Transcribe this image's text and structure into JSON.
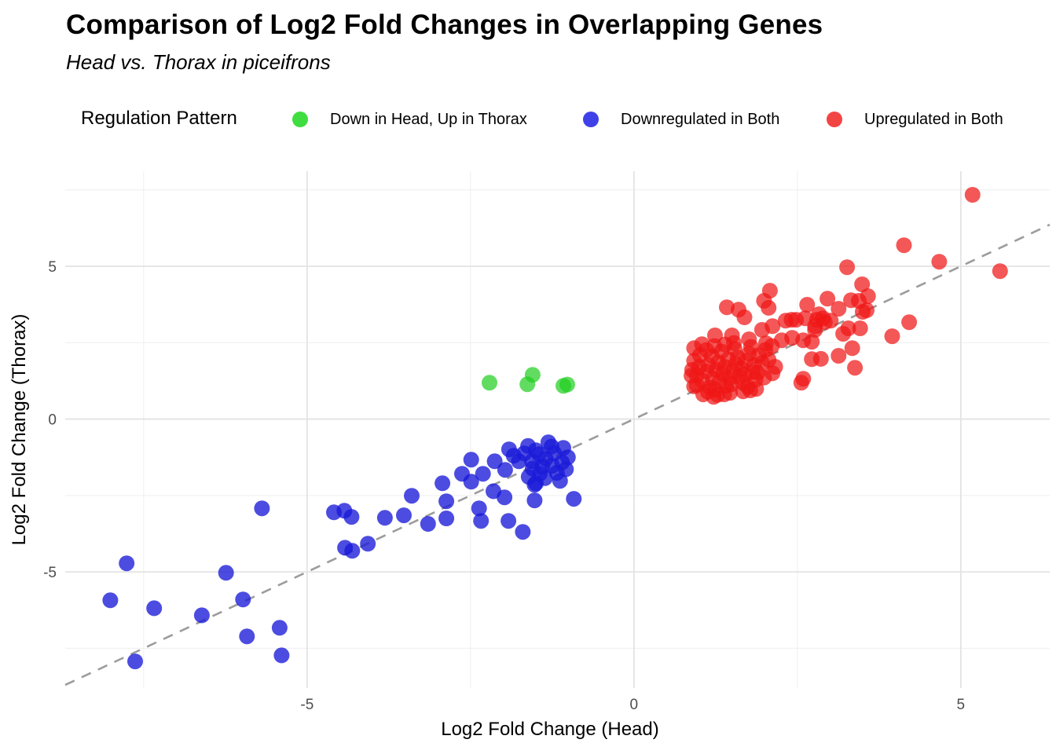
{
  "header": {
    "title": "Comparison of Log2 Fold Changes in Overlapping Genes",
    "subtitle": "Head vs. Thorax in piceifrons"
  },
  "legend": {
    "title": "Regulation Pattern",
    "items": [
      {
        "label": "Down in Head, Up in Thorax",
        "color": "#3fdd3f"
      },
      {
        "label": "Downregulated in Both",
        "color": "#4040e8"
      },
      {
        "label": "Upregulated in Both",
        "color": "#f34444"
      }
    ]
  },
  "chart_data": {
    "type": "scatter",
    "title": "Comparison of Log2 Fold Changes in Overlapping Genes",
    "subtitle": "Head vs. Thorax in piceifrons",
    "xlabel": "Log2 Fold Change (Head)",
    "ylabel": "Log2 Fold Change (Thorax)",
    "xlim": [
      -8.7,
      6.36
    ],
    "ylim": [
      -8.8,
      8.11
    ],
    "x_ticks": [
      -5,
      0,
      5
    ],
    "x_tick_labels": [
      "-5",
      "0",
      "5"
    ],
    "y_ticks": [
      5,
      0,
      -5
    ],
    "y_tick_labels": [
      "5",
      "0",
      "-5"
    ],
    "x_minor_ticks": [
      -7.5,
      -2.5,
      2.5
    ],
    "y_minor_ticks": [
      7.5,
      2.5,
      -2.5,
      -7.5
    ],
    "grid": true,
    "legend_position": "top",
    "reference_line": {
      "type": "identity y=x",
      "style": "dashed",
      "color": "#9c9c9c"
    },
    "series": [
      {
        "name": "Down in Head, Up in Thorax",
        "color": "#1ecd1e",
        "opacity": 0.7,
        "points": [
          [
            -2.21,
            1.19
          ],
          [
            -1.55,
            1.45
          ],
          [
            -1.63,
            1.14
          ],
          [
            -1.08,
            1.09
          ],
          [
            -1.02,
            1.13
          ]
        ]
      },
      {
        "name": "Downregulated in Both",
        "color": "#1a1ad9",
        "opacity": 0.78,
        "points": [
          [
            -8.01,
            -5.93
          ],
          [
            -7.76,
            -4.72
          ],
          [
            -7.63,
            -7.93
          ],
          [
            -7.34,
            -6.19
          ],
          [
            -6.61,
            -6.42
          ],
          [
            -6.24,
            -5.03
          ],
          [
            -5.98,
            -5.9
          ],
          [
            -5.92,
            -7.11
          ],
          [
            -5.69,
            -2.92
          ],
          [
            -5.42,
            -6.83
          ],
          [
            -5.39,
            -7.73
          ],
          [
            -4.59,
            -3.05
          ],
          [
            -4.43,
            -3.0
          ],
          [
            -4.32,
            -3.2
          ],
          [
            -3.81,
            -3.23
          ],
          [
            -3.52,
            -3.15
          ],
          [
            -3.4,
            -2.51
          ],
          [
            -4.42,
            -4.21
          ],
          [
            -4.31,
            -4.31
          ],
          [
            -4.07,
            -4.08
          ],
          [
            -3.15,
            -3.43
          ],
          [
            -2.93,
            -2.1
          ],
          [
            -2.87,
            -2.69
          ],
          [
            -2.87,
            -3.25
          ],
          [
            -2.63,
            -1.79
          ],
          [
            -2.49,
            -1.33
          ],
          [
            -2.49,
            -2.05
          ],
          [
            -2.37,
            -2.92
          ],
          [
            -2.34,
            -3.33
          ],
          [
            -2.31,
            -1.79
          ],
          [
            -2.13,
            -1.38
          ],
          [
            -2.15,
            -2.36
          ],
          [
            -1.97,
            -1.66
          ],
          [
            -1.98,
            -2.56
          ],
          [
            -1.92,
            -3.33
          ],
          [
            -1.7,
            -3.69
          ],
          [
            -1.52,
            -2.66
          ],
          [
            -0.92,
            -2.61
          ],
          [
            -1.52,
            -2.15
          ],
          [
            -1.91,
            -0.99
          ],
          [
            -1.5,
            -1.02
          ],
          [
            -1.31,
            -0.76
          ],
          [
            -1.08,
            -0.94
          ],
          [
            -1.01,
            -1.25
          ],
          [
            -1.04,
            -1.64
          ],
          [
            -1.56,
            -1.38
          ],
          [
            -1.44,
            -1.79
          ],
          [
            -1.25,
            -1.53
          ],
          [
            -1.61,
            -1.89
          ],
          [
            -1.76,
            -1.38
          ],
          [
            -1.13,
            -2.02
          ],
          [
            -1.5,
            -2.1
          ],
          [
            -1.45,
            -1.15
          ],
          [
            -1.35,
            -1.3
          ],
          [
            -1.22,
            -1.12
          ],
          [
            -1.68,
            -1.12
          ],
          [
            -1.4,
            -1.55
          ],
          [
            -1.18,
            -1.76
          ],
          [
            -1.36,
            -1.93
          ],
          [
            -1.55,
            -1.62
          ],
          [
            -1.26,
            -0.9
          ],
          [
            -1.84,
            -1.2
          ],
          [
            -1.62,
            -0.88
          ],
          [
            -1.1,
            -1.42
          ]
        ]
      },
      {
        "name": "Upregulated in Both",
        "color": "#f01616",
        "opacity": 0.72,
        "points": [
          [
            5.18,
            7.34
          ],
          [
            4.13,
            5.69
          ],
          [
            4.67,
            5.15
          ],
          [
            5.6,
            4.84
          ],
          [
            3.26,
            4.97
          ],
          [
            3.49,
            4.41
          ],
          [
            2.96,
            3.94
          ],
          [
            3.32,
            3.89
          ],
          [
            3.58,
            4.02
          ],
          [
            3.56,
            3.56
          ],
          [
            2.65,
            3.74
          ],
          [
            2.08,
            4.2
          ],
          [
            1.99,
            3.87
          ],
          [
            1.42,
            3.66
          ],
          [
            1.6,
            3.58
          ],
          [
            1.69,
            3.33
          ],
          [
            2.06,
            3.64
          ],
          [
            2.8,
            3.25
          ],
          [
            2.92,
            3.17
          ],
          [
            2.62,
            3.3
          ],
          [
            2.48,
            3.25
          ],
          [
            2.77,
            2.92
          ],
          [
            2.72,
            2.53
          ],
          [
            2.59,
            2.58
          ],
          [
            2.42,
            2.66
          ],
          [
            3.28,
            2.97
          ],
          [
            3.46,
            2.97
          ],
          [
            3.5,
            3.51
          ],
          [
            4.21,
            3.17
          ],
          [
            3.95,
            2.71
          ],
          [
            3.34,
            2.32
          ],
          [
            3.13,
            2.07
          ],
          [
            3.38,
            1.68
          ],
          [
            2.72,
            1.96
          ],
          [
            2.59,
            1.32
          ],
          [
            2.56,
            1.19
          ],
          [
            2.12,
            1.5
          ],
          [
            2.86,
            1.97
          ],
          [
            1.24,
            2.74
          ],
          [
            1.5,
            2.74
          ],
          [
            1.96,
            2.92
          ],
          [
            2.02,
            2.48
          ],
          [
            2.12,
            3.04
          ],
          [
            2.26,
            2.58
          ],
          [
            1.76,
            2.61
          ],
          [
            1.04,
            2.45
          ],
          [
            0.92,
            2.32
          ],
          [
            2.32,
            3.22
          ],
          [
            2.41,
            3.25
          ],
          [
            2.83,
            3.43
          ],
          [
            2.89,
            3.3
          ],
          [
            3.01,
            3.22
          ],
          [
            2.77,
            3.04
          ],
          [
            3.13,
            3.61
          ],
          [
            3.44,
            3.87
          ],
          [
            3.2,
            2.79
          ],
          [
            0.88,
            1.42
          ],
          [
            0.92,
            1.07
          ],
          [
            1.06,
            0.81
          ],
          [
            1.22,
            0.73
          ],
          [
            1.38,
            0.81
          ],
          [
            1.78,
            0.94
          ],
          [
            1.04,
            1.27
          ],
          [
            1.11,
            1.56
          ],
          [
            1.16,
            1.04
          ],
          [
            1.14,
            1.77
          ],
          [
            1.21,
            1.33
          ],
          [
            1.19,
            2.06
          ],
          [
            1.26,
            1.61
          ],
          [
            1.24,
            0.96
          ],
          [
            1.31,
            1.24
          ],
          [
            1.29,
            1.86
          ],
          [
            1.36,
            1.49
          ],
          [
            1.34,
            2.21
          ],
          [
            1.41,
            1.09
          ],
          [
            1.39,
            1.71
          ],
          [
            1.46,
            1.34
          ],
          [
            1.44,
            1.96
          ],
          [
            1.51,
            1.56
          ],
          [
            1.49,
            1.14
          ],
          [
            1.56,
            1.81
          ],
          [
            1.54,
            2.29
          ],
          [
            1.61,
            1.39
          ],
          [
            1.59,
            2.01
          ],
          [
            1.66,
            1.19
          ],
          [
            1.64,
            1.66
          ],
          [
            1.71,
            1.91
          ],
          [
            1.69,
            1.44
          ],
          [
            1.76,
            2.14
          ],
          [
            1.74,
            1.06
          ],
          [
            1.81,
            1.54
          ],
          [
            1.79,
            2.36
          ],
          [
            1.86,
            1.29
          ],
          [
            1.84,
            1.76
          ],
          [
            1.91,
            2.09
          ],
          [
            1.89,
            1.51
          ],
          [
            1.96,
            1.84
          ],
          [
            2.01,
            2.26
          ],
          [
            1.99,
            1.36
          ],
          [
            2.06,
            1.94
          ],
          [
            2.11,
            2.39
          ],
          [
            2.16,
            1.71
          ],
          [
            1.0,
            1.71
          ],
          [
            0.96,
            1.44
          ],
          [
            0.92,
            1.91
          ],
          [
            1.01,
            2.09
          ],
          [
            1.11,
            2.26
          ],
          [
            1.23,
            2.39
          ],
          [
            1.39,
            2.44
          ],
          [
            1.53,
            2.49
          ],
          [
            0.89,
            1.61
          ],
          [
            1.28,
            0.79
          ],
          [
            1.47,
            0.86
          ],
          [
            1.67,
            0.91
          ],
          [
            1.87,
            0.99
          ],
          [
            1.13,
            0.89
          ],
          [
            0.96,
            1.11
          ]
        ]
      }
    ]
  }
}
